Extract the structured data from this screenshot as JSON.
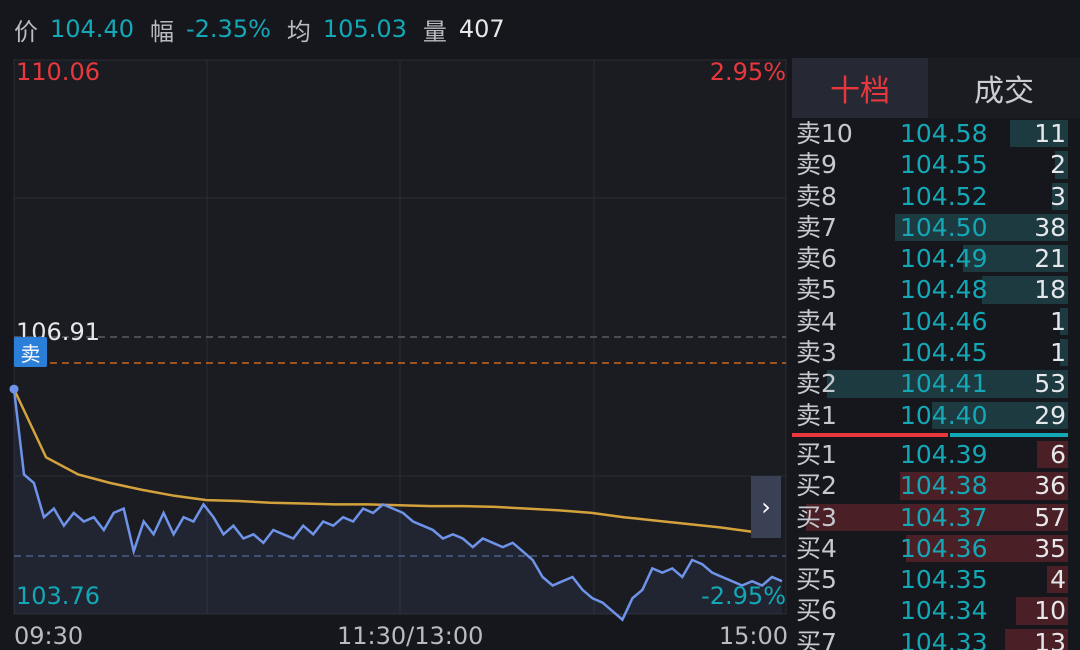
{
  "quote": {
    "price_label": "价",
    "price": "104.40",
    "change_label": "幅",
    "change": "-2.35%",
    "avg_label": "均",
    "avg": "105.03",
    "volume_label": "量",
    "volume": "407"
  },
  "chart": {
    "high_price": "110.06",
    "high_pct": "2.95%",
    "low_price": "103.76",
    "low_pct": "-2.95%",
    "mark_price": "106.91",
    "sell_tag": "卖",
    "times": [
      "09:30",
      "11:30/13:00",
      "15:00"
    ],
    "expand_icon": "chevron-right-icon",
    "colors": {
      "price_line": "#6f93e8",
      "avg_line": "#d4a23c",
      "up": "#e8383d",
      "down": "#14a7b5"
    }
  },
  "chart_data": {
    "type": "line",
    "ylim": [
      103.76,
      110.06
    ],
    "x_range": [
      "09:30",
      "15:00"
    ],
    "series": [
      {
        "values": [
          106.3,
          105.3,
          105.2,
          104.8,
          104.9,
          104.7,
          104.85,
          104.75,
          104.8,
          104.65,
          104.85,
          104.9,
          104.4,
          104.75,
          104.6,
          104.85,
          104.6,
          104.8,
          104.75,
          104.95,
          104.8,
          104.6,
          104.7,
          104.55,
          104.6,
          104.5,
          104.65,
          104.6,
          104.55,
          104.7,
          104.6,
          104.75,
          104.7,
          104.8,
          104.75,
          104.9,
          104.85,
          104.95,
          104.9,
          104.85,
          104.75,
          104.7,
          104.65,
          104.55,
          104.6,
          104.55,
          104.45,
          104.55,
          104.5,
          104.45,
          104.5,
          104.4,
          104.3,
          104.1,
          104.0,
          104.05,
          104.1,
          103.95,
          103.85,
          103.8,
          103.7,
          103.6,
          103.85,
          103.95,
          104.2,
          104.15,
          104.2,
          104.1,
          104.3,
          104.25,
          104.15,
          104.1,
          104.05,
          104.0,
          104.05,
          104.0,
          104.1,
          104.05
        ]
      },
      {
        "values": [
          106.3,
          105.5,
          105.3,
          105.2,
          105.12,
          105.05,
          105.0,
          104.99,
          104.97,
          104.96,
          104.95,
          104.95,
          104.94,
          104.93,
          104.93,
          104.92,
          104.9,
          104.88,
          104.85,
          104.8,
          104.76,
          104.72,
          104.68,
          104.63
        ]
      }
    ]
  },
  "order_book": {
    "tabs": [
      "十档",
      "成交"
    ],
    "asks": [
      {
        "label": "卖10",
        "price": "104.58",
        "vol": "11",
        "fill": 0.22
      },
      {
        "label": "卖9",
        "price": "104.55",
        "vol": "2",
        "fill": 0.05
      },
      {
        "label": "卖8",
        "price": "104.52",
        "vol": "3",
        "fill": 0.06
      },
      {
        "label": "卖7",
        "price": "104.50",
        "vol": "38",
        "fill": 0.66
      },
      {
        "label": "卖6",
        "price": "104.49",
        "vol": "21",
        "fill": 0.4
      },
      {
        "label": "卖5",
        "price": "104.48",
        "vol": "18",
        "fill": 0.33
      },
      {
        "label": "卖4",
        "price": "104.46",
        "vol": "1",
        "fill": 0.03
      },
      {
        "label": "卖3",
        "price": "104.45",
        "vol": "1",
        "fill": 0.03
      },
      {
        "label": "卖2",
        "price": "104.41",
        "vol": "53",
        "fill": 0.92
      },
      {
        "label": "卖1",
        "price": "104.40",
        "vol": "29",
        "fill": 0.52
      }
    ],
    "bids": [
      {
        "label": "买1",
        "price": "104.39",
        "vol": "6",
        "fill": 0.12
      },
      {
        "label": "买2",
        "price": "104.38",
        "vol": "36",
        "fill": 0.64
      },
      {
        "label": "买3",
        "price": "104.37",
        "vol": "57",
        "fill": 1.0
      },
      {
        "label": "买4",
        "price": "104.36",
        "vol": "35",
        "fill": 0.62
      },
      {
        "label": "买5",
        "price": "104.35",
        "vol": "4",
        "fill": 0.08
      },
      {
        "label": "买6",
        "price": "104.34",
        "vol": "10",
        "fill": 0.2
      },
      {
        "label": "买7",
        "price": "104.33",
        "vol": "13",
        "fill": 0.24
      }
    ]
  }
}
